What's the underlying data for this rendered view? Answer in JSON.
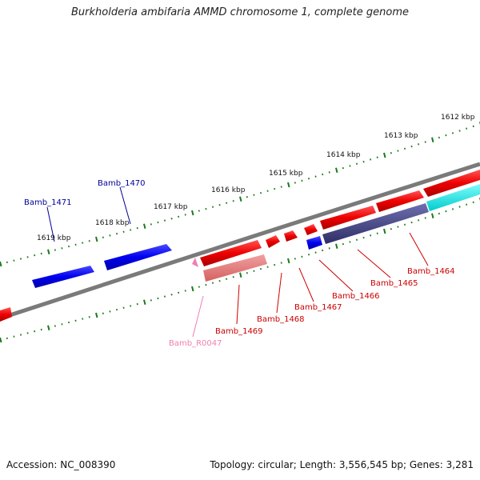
{
  "title": "Burkholderia ambifaria AMMD chromosome 1, complete genome",
  "footer": {
    "accession": "Accession: NC_008390",
    "topology": "Topology: circular; Length: 3,556,545 bp; Genes: 3,281"
  },
  "colors": {
    "backbone": "#777777",
    "tick": "#1a7a1a",
    "forward_gene": "#0000dd",
    "reverse_gene": "#dd0000",
    "rna_gene": "#f07fb0",
    "cyan_gene": "#00dddd",
    "slate_gene": "#4a4a8a"
  },
  "scale_labels": [
    "1612 kbp",
    "1613 kbp",
    "1614 kbp",
    "1615 kbp",
    "1616 kbp",
    "1617 kbp",
    "1618 kbp",
    "1619 kbp"
  ],
  "genes_top": [
    {
      "label": "Bamb_1471",
      "color": "#000099"
    },
    {
      "label": "Bamb_1470",
      "color": "#000099"
    }
  ],
  "genes_bottom": [
    {
      "label": "Bamb_1464",
      "color": "#cc0000"
    },
    {
      "label": "Bamb_1465",
      "color": "#cc0000"
    },
    {
      "label": "Bamb_1466",
      "color": "#cc0000"
    },
    {
      "label": "Bamb_1467",
      "color": "#cc0000"
    },
    {
      "label": "Bamb_1468",
      "color": "#cc0000"
    },
    {
      "label": "Bamb_1469",
      "color": "#cc0000"
    },
    {
      "label": "Bamb_R0047",
      "color": "#f07fb0"
    }
  ]
}
